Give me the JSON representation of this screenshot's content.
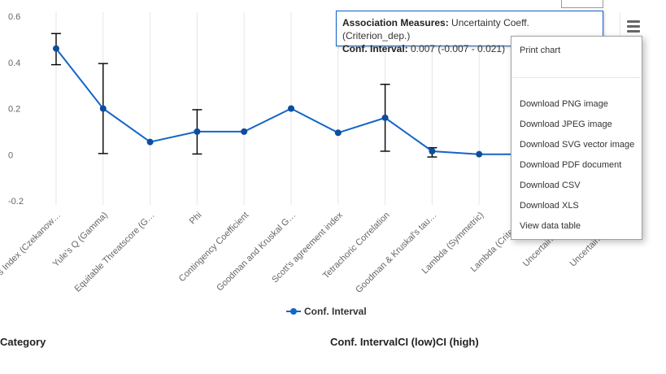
{
  "chart_data": {
    "type": "line",
    "categories": [
      "Yule's Index (Czekanowski)",
      "Yule's Q (Gamma)",
      "Equitable Threatscore (Gilbert)",
      "Phi",
      "Contingency Coefficient",
      "Goodman and Kruskal Gamma",
      "Scott's agreement index",
      "Tetrachoric Correlation",
      "Goodman & Kruskal's tau",
      "Lambda (Symmetric)",
      "Lambda (Criterion_dep.)",
      "Uncertainty Coeff. (Criterion_dep.)",
      "Uncertainty Coeff. (Symmetric)"
    ],
    "tick_labels": [
      "s Index (Czekanow…",
      "Yule's Q (Gamma)",
      "Equitable Threatscore (G…",
      "Phi",
      "Contingency Coefficient",
      "Goodman and Kruskal G…",
      "Scott's agreement index",
      "Tetrachoric Correlation",
      "Goodman & Kruskal's tau…",
      "Lambda (Symmetric)",
      "Lambda (Criterion…",
      "Uncertainty Coe…",
      "Uncertainty Coe…"
    ],
    "series": [
      {
        "name": "Conf. Interval",
        "values": [
          0.46,
          0.2,
          0.055,
          0.1,
          0.1,
          0.2,
          0.095,
          0.16,
          0.015,
          0.002,
          0.002,
          0.007,
          0.007
        ],
        "ci_low": [
          0.39,
          0.005,
          null,
          0.003,
          null,
          null,
          null,
          0.015,
          -0.01,
          null,
          null,
          -0.007,
          null
        ],
        "ci_high": [
          0.525,
          0.395,
          null,
          0.195,
          null,
          null,
          null,
          0.305,
          0.03,
          null,
          null,
          0.021,
          null
        ]
      }
    ],
    "y_ticks": [
      "0.6",
      "0.4",
      "0.2",
      "0",
      "-0.2"
    ],
    "ylim": [
      -0.2,
      0.6
    ],
    "grid": true,
    "legend": "bottom-center",
    "color": "#1466c6"
  },
  "legend": {
    "label": "Conf. Interval"
  },
  "table": {
    "col1": "Category",
    "col2": "Conf. IntervalCI (low)CI (high)"
  },
  "tooltip": {
    "line1_label": "Association Measures:",
    "line1_value": " Uncertainty Coeff. (Criterion_dep.)",
    "line2_label": "Conf. Interval:",
    "line2_value": " 0.007 (-0.007 - 0.021)"
  },
  "menu": {
    "print": "Print chart",
    "png": "Download PNG image",
    "jpeg": "Download JPEG image",
    "svg": "Download SVG vector image",
    "pdf": "Download PDF document",
    "csv": "Download CSV",
    "xls": "Download XLS",
    "table": "View data table"
  }
}
